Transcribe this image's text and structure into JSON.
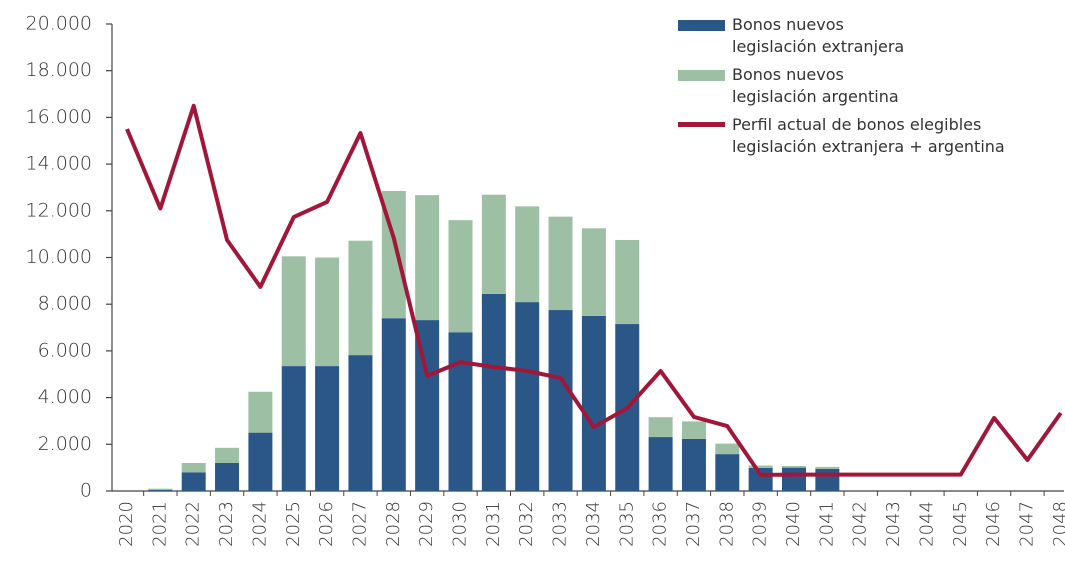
{
  "chart_data": {
    "type": "bar",
    "stacked": true,
    "categories": [
      "2020",
      "2021",
      "2022",
      "2023",
      "2024",
      "2025",
      "2026",
      "2027",
      "2028",
      "2029",
      "2030",
      "2031",
      "2032",
      "2033",
      "2034",
      "2035",
      "2036",
      "2037",
      "2038",
      "2039",
      "2040",
      "2041",
      "2042",
      "2043",
      "2044",
      "2045",
      "2046",
      "2047",
      "2048"
    ],
    "series": [
      {
        "name": "Bonos nuevos\nlegislación extranjera",
        "type": "bar",
        "color": "#2b5788",
        "values": [
          0,
          50,
          800,
          1200,
          2500,
          5350,
          5350,
          5820,
          7400,
          7320,
          6800,
          8440,
          8090,
          7750,
          7500,
          7150,
          2310,
          2230,
          1580,
          990,
          1000,
          950,
          0,
          0,
          0,
          0,
          0,
          0,
          0
        ]
      },
      {
        "name": "Bonos nuevos\nlegislación argentina",
        "type": "bar",
        "color": "#9dbfa4",
        "values": [
          0,
          50,
          400,
          650,
          1750,
          4700,
          4650,
          4900,
          5450,
          5350,
          4800,
          4250,
          4100,
          4000,
          3750,
          3600,
          850,
          750,
          450,
          100,
          70,
          80,
          0,
          0,
          0,
          0,
          0,
          0,
          0
        ]
      },
      {
        "name": "Perfil actual de bonos elegibles\nlegislación extranjera + argentina",
        "type": "line",
        "color": "#a0173a",
        "values": [
          15500,
          12100,
          16500,
          10750,
          8740,
          11730,
          12380,
          15330,
          10830,
          4930,
          5520,
          5310,
          5140,
          4840,
          2740,
          3550,
          5140,
          3170,
          2780,
          690,
          700,
          700,
          700,
          700,
          700,
          700,
          3130,
          1330,
          3340
        ]
      }
    ],
    "ylim": [
      0,
      20000
    ],
    "yticks": [
      0,
      {
        "value": 2000,
        "label": "2.000"
      },
      {
        "value": 4000,
        "label": "4.000"
      },
      {
        "value": 6000,
        "label": "6.000"
      },
      {
        "value": 8000,
        "label": "8.000"
      },
      {
        "value": 10000,
        "label": "10.000"
      },
      {
        "value": 12000,
        "label": "12.000"
      },
      {
        "value": 14000,
        "label": "14.000"
      },
      {
        "value": 16000,
        "label": "16.000"
      },
      {
        "value": 18000,
        "label": "18.000"
      },
      {
        "value": 20000,
        "label": "20.000"
      }
    ],
    "legend": "top-right"
  }
}
